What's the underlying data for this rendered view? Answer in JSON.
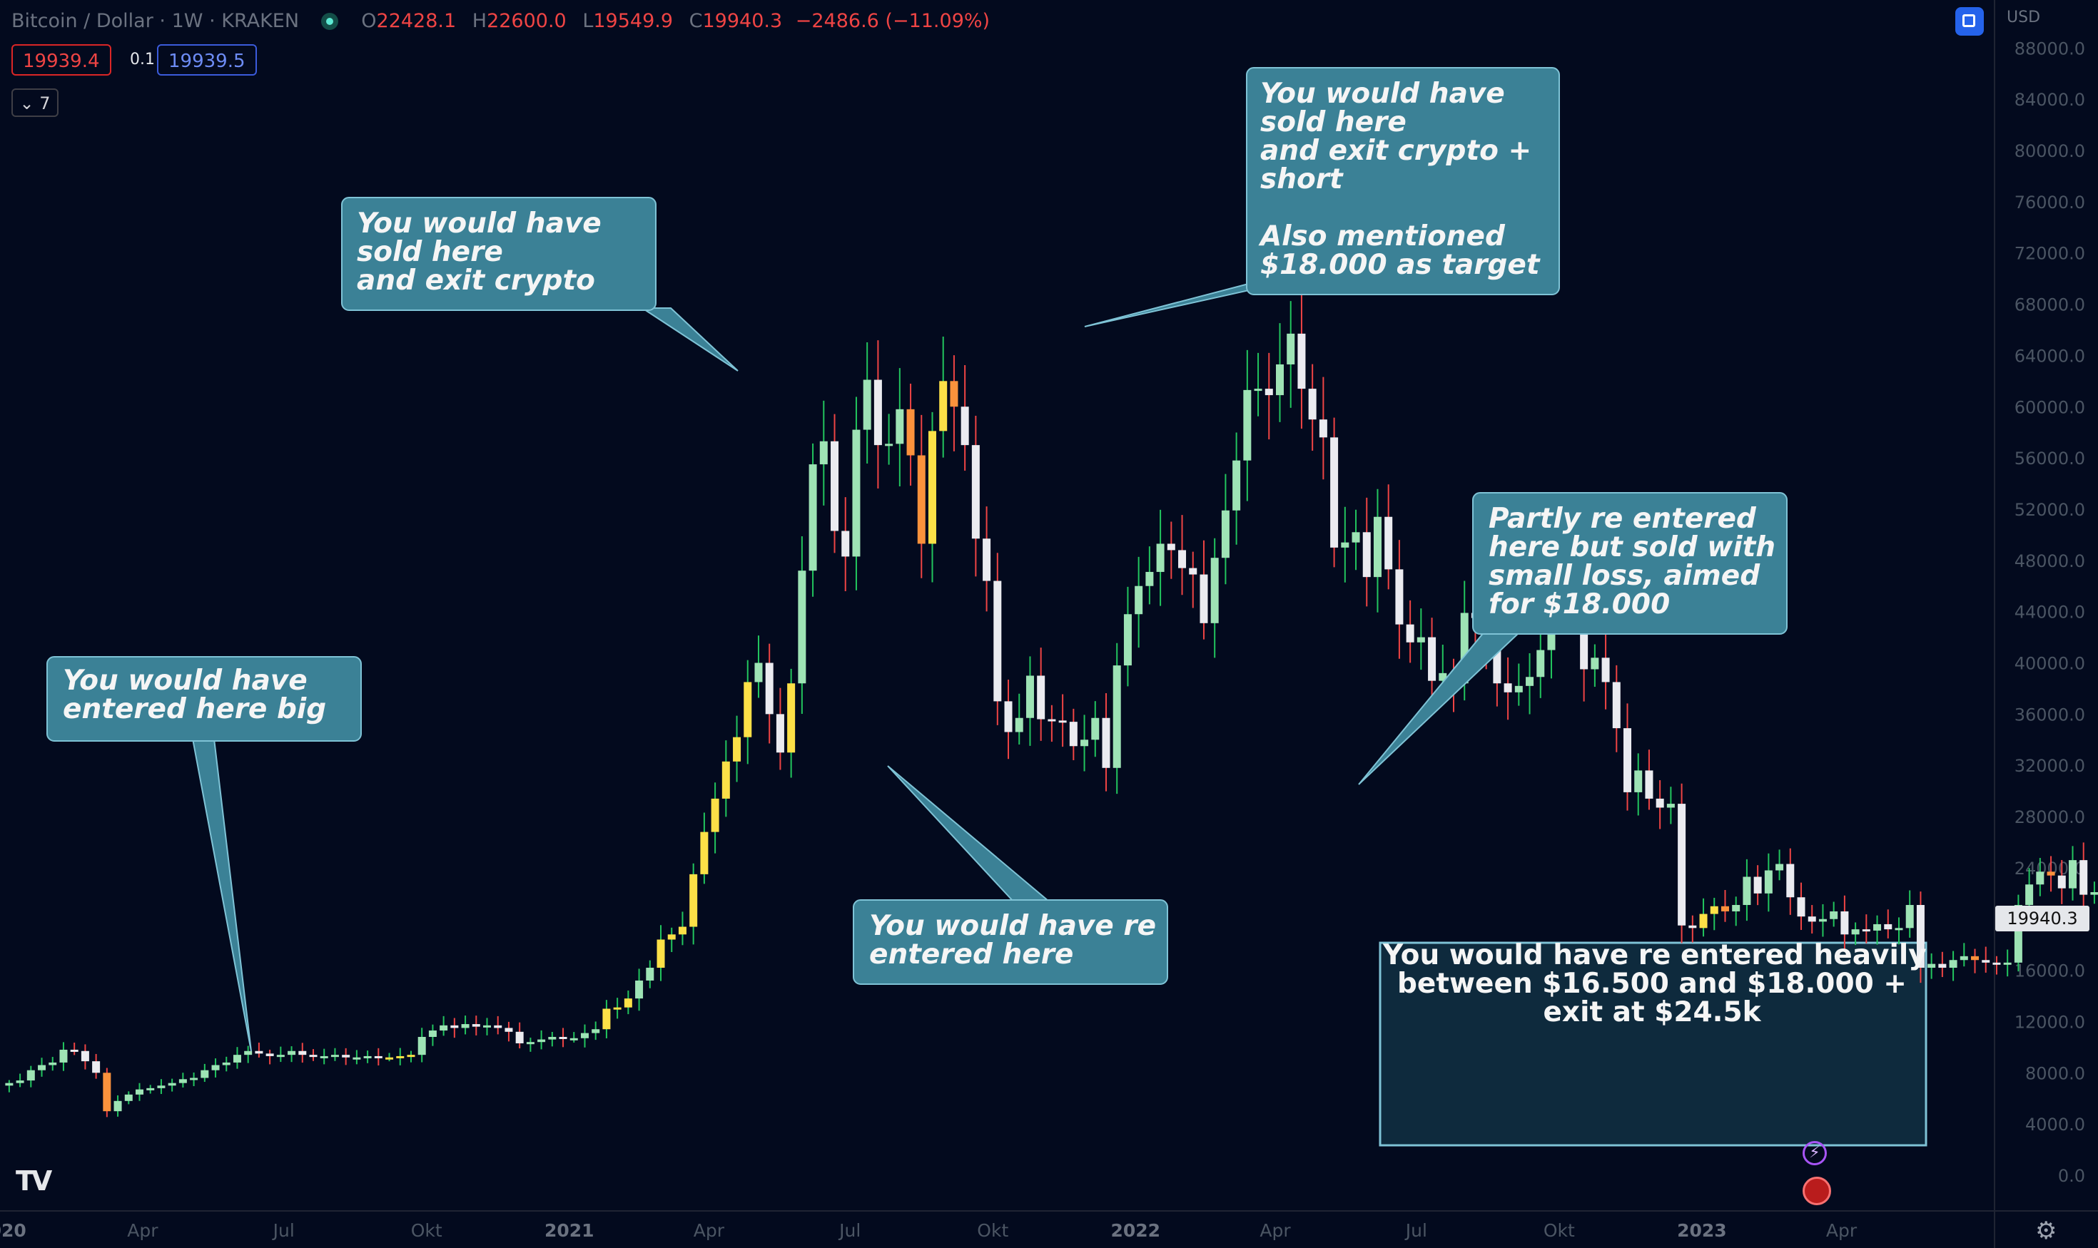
{
  "header": {
    "symbol": "Bitcoin / Dollar",
    "sep1": "·",
    "interval": "1W",
    "sep2": "·",
    "exchange": "KRAKEN",
    "o_label": "O",
    "o_value": "22428.1",
    "h_label": "H",
    "h_value": "22600.0",
    "l_label": "L",
    "l_value": "19549.9",
    "c_label": "C",
    "c_value": "19940.3",
    "change": "−2486.6 (−11.09%)"
  },
  "order": {
    "sell_price": "19939.4",
    "size": "0.1",
    "buy_price": "19939.5"
  },
  "indicators_toggle": {
    "chevron_icon": "chevron-down-icon",
    "count": "7"
  },
  "currency": "USD",
  "last_price_tag": "19940.3",
  "colors": {
    "background": "#030a1e",
    "note_fill": "#3b8196",
    "note_border": "#7fc3d6",
    "box_fill": "#0e2a3d",
    "up": "#9ee3b5",
    "down": "#ebebf0",
    "warm_yellow": "#fde047",
    "warm_orange": "#fb923c"
  },
  "annotations": [
    {
      "id": "entered-big",
      "text": "You would have\nentered here big"
    },
    {
      "id": "sold-exit",
      "text": "You would have\nsold here\nand exit crypto"
    },
    {
      "id": "sold-short",
      "text": "You would have\nsold here\nand exit crypto +\nshort\n\nAlso mentioned\n$18.000 as target"
    },
    {
      "id": "reentered",
      "text": "You would have re\nentered here"
    },
    {
      "id": "partly",
      "text": "Partly re entered\nhere but sold with\nsmall loss, aimed\nfor $18.000"
    },
    {
      "id": "heavy",
      "text": "You would have re entered heavily\nbetween $16.500 and $18.000 +\nexit at $24.5k"
    }
  ],
  "chart_data": {
    "type": "candlestick",
    "interval": "1W",
    "y_axis": {
      "ticks": [
        "88000.0",
        "84000.0",
        "80000.0",
        "76000.0",
        "72000.0",
        "68000.0",
        "64000.0",
        "60000.0",
        "56000.0",
        "52000.0",
        "48000.0",
        "44000.0",
        "40000.0",
        "36000.0",
        "32000.0",
        "28000.0",
        "24000.0",
        "20000.0",
        "16000.0",
        "12000.0",
        "8000.0",
        "4000.0",
        "0.0"
      ],
      "range": [
        0,
        90000
      ]
    },
    "x_axis": {
      "ticks": [
        {
          "label": "2020",
          "bold": true,
          "date": "2020-01-01"
        },
        {
          "label": "Apr",
          "date": "2020-04-01"
        },
        {
          "label": "Jul",
          "date": "2020-07-01"
        },
        {
          "label": "Okt",
          "date": "2020-10-01"
        },
        {
          "label": "2021",
          "bold": true,
          "date": "2021-01-01"
        },
        {
          "label": "Apr",
          "date": "2021-04-01"
        },
        {
          "label": "Jul",
          "date": "2021-07-01"
        },
        {
          "label": "Okt",
          "date": "2021-10-01"
        },
        {
          "label": "2022",
          "bold": true,
          "date": "2022-01-01"
        },
        {
          "label": "Apr",
          "date": "2022-04-01"
        },
        {
          "label": "Jul",
          "date": "2022-07-01"
        },
        {
          "label": "Okt",
          "date": "2022-10-01"
        },
        {
          "label": "2023",
          "bold": true,
          "date": "2023-01-01"
        },
        {
          "label": "Apr",
          "date": "2023-04-01"
        }
      ],
      "range": [
        "2020-01-01",
        "2023-04-01"
      ]
    },
    "closes": [
      7200,
      7400,
      8200,
      8600,
      8800,
      9800,
      9700,
      8900,
      8000,
      5000,
      5800,
      6300,
      6700,
      6800,
      7000,
      7200,
      7500,
      7600,
      8200,
      8600,
      8800,
      9400,
      9700,
      9500,
      9300,
      9400,
      9700,
      9400,
      9300,
      9300,
      9400,
      9200,
      9200,
      9300,
      9200,
      9200,
      9300,
      9400,
      10800,
      11300,
      11700,
      11500,
      11800,
      11600,
      11700,
      11500,
      11200,
      10300,
      10400,
      10600,
      10800,
      10700,
      10700,
      11100,
      11400,
      13000,
      13100,
      13800,
      15200,
      16200,
      18400,
      18800,
      19400,
      23500,
      26800,
      29400,
      32300,
      34200,
      38500,
      40000,
      36000,
      33000,
      38400,
      47200,
      55500,
      57300,
      50300,
      48300,
      58200,
      62100,
      57000,
      57100,
      59800,
      56200,
      49300,
      58100,
      62000,
      60000,
      57000,
      49700,
      46400,
      37000,
      34600,
      35700,
      39000,
      35600,
      35500,
      35400,
      33500,
      34000,
      35700,
      31800,
      39800,
      43800,
      46000,
      47100,
      49300,
      48800,
      47400,
      46900,
      43100,
      48200,
      51900,
      55800,
      61300,
      61400,
      60900,
      63300,
      65700,
      61400,
      59000,
      57600,
      49000,
      49400,
      50200,
      46700,
      51400,
      47300,
      43000,
      41600,
      42000,
      38600,
      39200,
      38400,
      43900,
      43500,
      41500,
      38400,
      37700,
      38200,
      38900,
      41000,
      45900,
      46500,
      44000,
      39500,
      40400,
      38500,
      34900,
      29900,
      31600,
      29400,
      28700,
      29000,
      19500,
      19300,
      20400,
      21000,
      20600,
      21100,
      23300,
      22000,
      23800,
      24300,
      21700,
      20200,
      19800,
      20000,
      20600,
      18800,
      19200,
      19100,
      19600,
      19200,
      19300,
      21100,
      16200,
      16500,
      16200,
      16800,
      17100,
      16800,
      16600,
      16500,
      16600,
      21100,
      22700,
      23700,
      23400,
      22400,
      24600,
      21900,
      22100,
      22400,
      19940
    ],
    "series": [
      {
        "name": "BTC/USD",
        "values": "see closes"
      }
    ],
    "last_value": 19940.3
  },
  "brand_logo": "TV",
  "settings_icon": "gear-icon"
}
